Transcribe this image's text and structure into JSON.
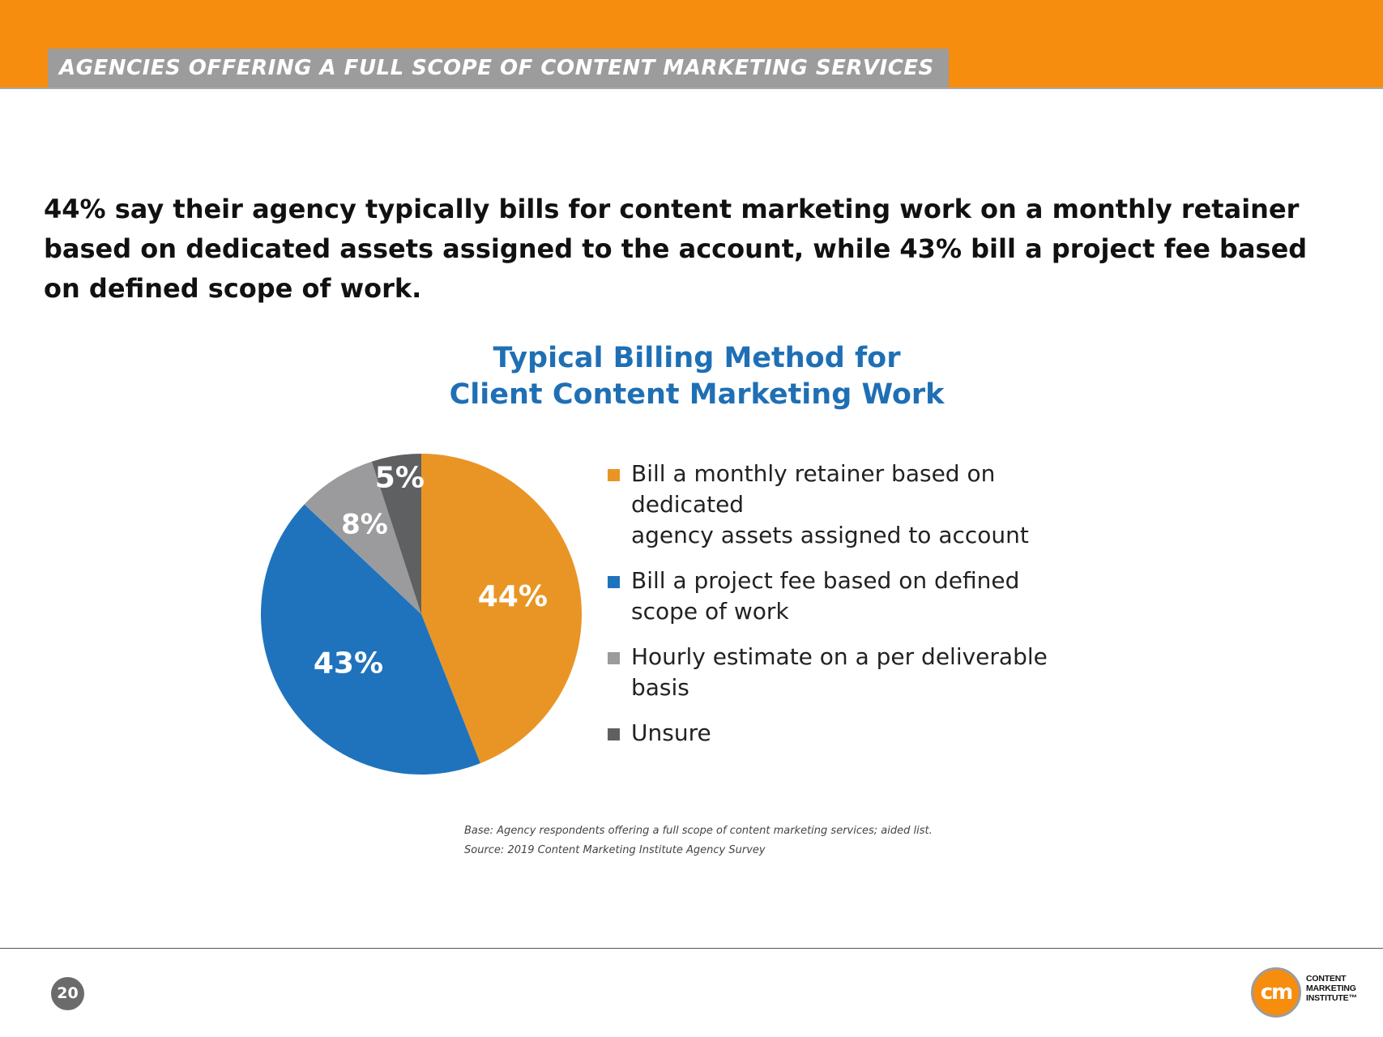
{
  "header": {
    "section_title": "AGENCIES OFFERING A FULL SCOPE OF CONTENT MARKETING SERVICES",
    "accent_color": "#f78d0e",
    "tab_color": "#9c9c9c"
  },
  "headline": "44% say their agency typically bills for content marketing work on a monthly retainer based on dedicated assets assigned to the account, while 43% bill a project fee based on defined scope of work.",
  "chart_data": {
    "type": "pie",
    "title_lines": [
      "Typical Billing Method for",
      "Client Content Marketing Work"
    ],
    "legend_position": "right",
    "slices": [
      {
        "label": "Bill a monthly retainer based on dedicated agency assets assigned to account",
        "legend_lines": [
          "Bill a monthly retainer based on dedicated",
          "agency assets assigned to account"
        ],
        "value": 44,
        "display": "44%",
        "color": "#e99525"
      },
      {
        "label": "Bill a project fee based on defined scope of work",
        "legend_lines": [
          "Bill a project fee based on defined",
          "scope of work"
        ],
        "value": 43,
        "display": "43%",
        "color": "#1f73bd"
      },
      {
        "label": "Hourly estimate on a per deliverable basis",
        "legend_lines": [
          "Hourly estimate on a per deliverable basis"
        ],
        "value": 8,
        "display": "8%",
        "color": "#9b9b9d"
      },
      {
        "label": "Unsure",
        "legend_lines": [
          "Unsure"
        ],
        "value": 5,
        "display": "5%",
        "color": "#5f6062"
      }
    ]
  },
  "footnotes": {
    "base": "Base: Agency respondents offering a full scope of content marketing services; aided list.",
    "source": "Source: 2019 Content Marketing Institute Agency Survey"
  },
  "footer": {
    "page_number": "20",
    "logo_mark": "cm",
    "logo_lines": [
      "CONTENT",
      "MARKETING",
      "INSTITUTE™"
    ]
  }
}
